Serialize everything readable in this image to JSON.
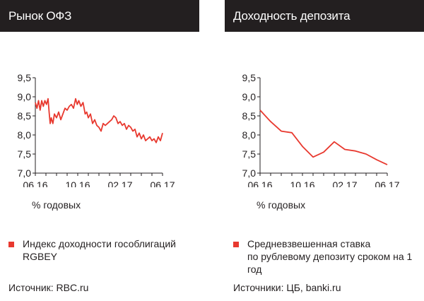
{
  "chart_data": [
    {
      "type": "line",
      "title": "Рынок ОФЗ",
      "ylabel": "% годовых",
      "x_ticks": [
        "06.16",
        "10.16",
        "02.17",
        "06.17"
      ],
      "y_ticks": [
        "9,5",
        "9,0",
        "8,5",
        "8,0",
        "7,5",
        "7,0"
      ],
      "ylim": [
        7.0,
        9.5
      ],
      "xlim": [
        0,
        12
      ],
      "grid": false,
      "series": [
        {
          "name": "Индекс доходности гособлигаций RGBEY",
          "color": "#e8392f",
          "x": [
            0,
            0.15,
            0.3,
            0.45,
            0.6,
            0.75,
            0.9,
            1.05,
            1.2,
            1.3,
            1.4,
            1.5,
            1.65,
            1.8,
            2.0,
            2.2,
            2.4,
            2.6,
            2.8,
            3.0,
            3.2,
            3.4,
            3.6,
            3.8,
            3.95,
            4.1,
            4.3,
            4.5,
            4.7,
            4.85,
            5.0,
            5.2,
            5.4,
            5.6,
            5.8,
            6.0,
            6.2,
            6.4,
            6.6,
            6.8,
            7.0,
            7.2,
            7.4,
            7.6,
            7.8,
            8.0,
            8.2,
            8.4,
            8.6,
            8.8,
            9.0,
            9.2,
            9.4,
            9.6,
            9.8,
            10.0,
            10.2,
            10.4,
            10.6,
            10.8,
            11.0,
            11.2,
            11.4,
            11.6,
            11.8,
            12.0
          ],
          "y": [
            8.85,
            8.7,
            8.9,
            8.65,
            8.9,
            8.75,
            8.9,
            8.8,
            8.95,
            8.6,
            8.3,
            8.45,
            8.3,
            8.55,
            8.45,
            8.6,
            8.4,
            8.55,
            8.7,
            8.65,
            8.75,
            8.8,
            8.7,
            8.95,
            8.8,
            8.9,
            8.75,
            8.85,
            8.55,
            8.6,
            8.45,
            8.55,
            8.3,
            8.4,
            8.25,
            8.2,
            8.1,
            8.3,
            8.25,
            8.3,
            8.35,
            8.4,
            8.5,
            8.45,
            8.3,
            8.35,
            8.25,
            8.3,
            8.15,
            8.25,
            8.2,
            8.1,
            8.15,
            7.95,
            8.05,
            7.9,
            8.0,
            7.85,
            7.9,
            7.95,
            7.85,
            7.9,
            7.8,
            7.95,
            7.85,
            8.05
          ]
        }
      ]
    },
    {
      "type": "line",
      "title": "Доходность депозита",
      "ylabel": "% годовых",
      "x_ticks": [
        "06.16",
        "10.16",
        "02.17",
        "06.17"
      ],
      "y_ticks": [
        "9,5",
        "9,0",
        "8,5",
        "8,0",
        "7,5",
        "7,0"
      ],
      "ylim": [
        7.0,
        9.5
      ],
      "xlim": [
        0,
        12
      ],
      "grid": false,
      "series": [
        {
          "name": "Средневзвешенная ставка по рублевому депозиту сроком на 1 год",
          "color": "#e8392f",
          "x": [
            0,
            1,
            2,
            3,
            4,
            5,
            6,
            7,
            8,
            9,
            10,
            11,
            12
          ],
          "y": [
            8.65,
            8.35,
            8.1,
            8.06,
            7.7,
            7.42,
            7.55,
            7.82,
            7.62,
            7.58,
            7.5,
            7.35,
            7.22
          ]
        }
      ]
    }
  ],
  "left_panel": {
    "title": "Рынок ОФЗ",
    "unit": "% годовых",
    "legend": "Индекс доходности гособлигаций RGBEY",
    "source": "Источник: RBC.ru"
  },
  "right_panel": {
    "title": "Доходность депозита",
    "unit": "% годовых",
    "legend_line1": "Средневзвешенная ставка",
    "legend_line2": "по рублевому депозиту сроком на 1 год",
    "source": "Источники: ЦБ, banki.ru"
  }
}
